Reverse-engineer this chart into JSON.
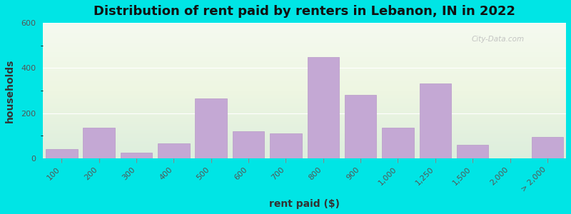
{
  "title": "Distribution of rent paid by renters in Lebanon, IN in 2022",
  "xlabel": "rent paid ($)",
  "ylabel": "households",
  "bar_color": "#c4a8d4",
  "bar_edge_color": "#b898c8",
  "outer_background": "#00e5e5",
  "ylim": [
    0,
    600
  ],
  "yticks": [
    0,
    200,
    400,
    600
  ],
  "categories": [
    "100",
    "200",
    "300",
    "400",
    "500",
    "600",
    "700",
    "800",
    "900",
    "1,000",
    "1,250",
    "1,500",
    "2,000",
    "> 2,000"
  ],
  "values": [
    40,
    135,
    25,
    65,
    265,
    120,
    110,
    450,
    280,
    135,
    330,
    60,
    0,
    95
  ],
  "title_fontsize": 13,
  "axis_label_fontsize": 10,
  "tick_fontsize": 8,
  "watermark_text": "City-Data.com"
}
